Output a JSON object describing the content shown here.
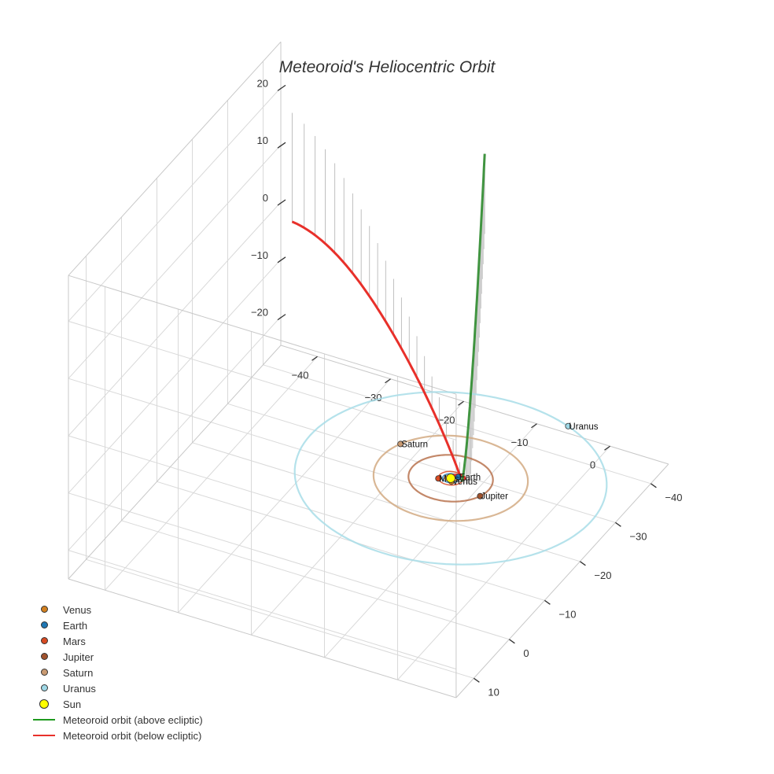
{
  "chart_data": {
    "type": "scatter3d",
    "title": "Meteoroid's Heliocentric Orbit",
    "axes": {
      "x": {
        "ticks": [
          -40,
          -30,
          -20,
          -10,
          0
        ],
        "range": [
          -45,
          8
        ]
      },
      "y": {
        "ticks": [
          -40,
          -30,
          -20,
          -10,
          0,
          10
        ],
        "range": [
          -45,
          15
        ]
      },
      "z": {
        "ticks": [
          -20,
          -10,
          0,
          10,
          20
        ],
        "range": [
          -25,
          28
        ]
      }
    },
    "planets": [
      {
        "name": "Venus",
        "color": "#d2801f",
        "orbit_color": "#d2801f",
        "radius_au": 0.72
      },
      {
        "name": "Earth",
        "color": "#1f77b4",
        "orbit_color": "#1f77b4",
        "radius_au": 1.0
      },
      {
        "name": "Mars",
        "color": "#d84a22",
        "orbit_color": "#d84a22",
        "radius_au": 1.52
      },
      {
        "name": "Jupiter",
        "color": "#a0522d",
        "orbit_color": "#b8734f",
        "radius_au": 5.2
      },
      {
        "name": "Saturn",
        "color": "#c99a72",
        "orbit_color": "#d2aa82",
        "radius_au": 9.5
      },
      {
        "name": "Uranus",
        "color": "#9fd8e6",
        "orbit_color": "#a8dde8",
        "radius_au": 19.2
      }
    ],
    "sun": {
      "name": "Sun",
      "color": "#ffff00"
    },
    "meteoroid_above": {
      "name": "Meteoroid orbit (above ecliptic)",
      "color": "#2e8b2e"
    },
    "meteoroid_below": {
      "name": "Meteoroid orbit (below ecliptic)",
      "color": "#e8302a"
    }
  },
  "legend": [
    {
      "label": "Venus",
      "kind": "dot",
      "color": "#d2801f"
    },
    {
      "label": "Earth",
      "kind": "dot",
      "color": "#1f77b4"
    },
    {
      "label": "Mars",
      "kind": "dot",
      "color": "#d84a22"
    },
    {
      "label": "Jupiter",
      "kind": "dot",
      "color": "#a0522d"
    },
    {
      "label": "Saturn",
      "kind": "dot",
      "color": "#c99a72"
    },
    {
      "label": "Uranus",
      "kind": "dot",
      "color": "#9fd8e6"
    },
    {
      "label": "Sun",
      "kind": "bigdot",
      "color": "#ffff00"
    },
    {
      "label": "Meteoroid orbit (above ecliptic)",
      "kind": "line",
      "color": "#1e9a1e"
    },
    {
      "label": "Meteoroid orbit (below ecliptic)",
      "kind": "line",
      "color": "#e8302a"
    }
  ]
}
